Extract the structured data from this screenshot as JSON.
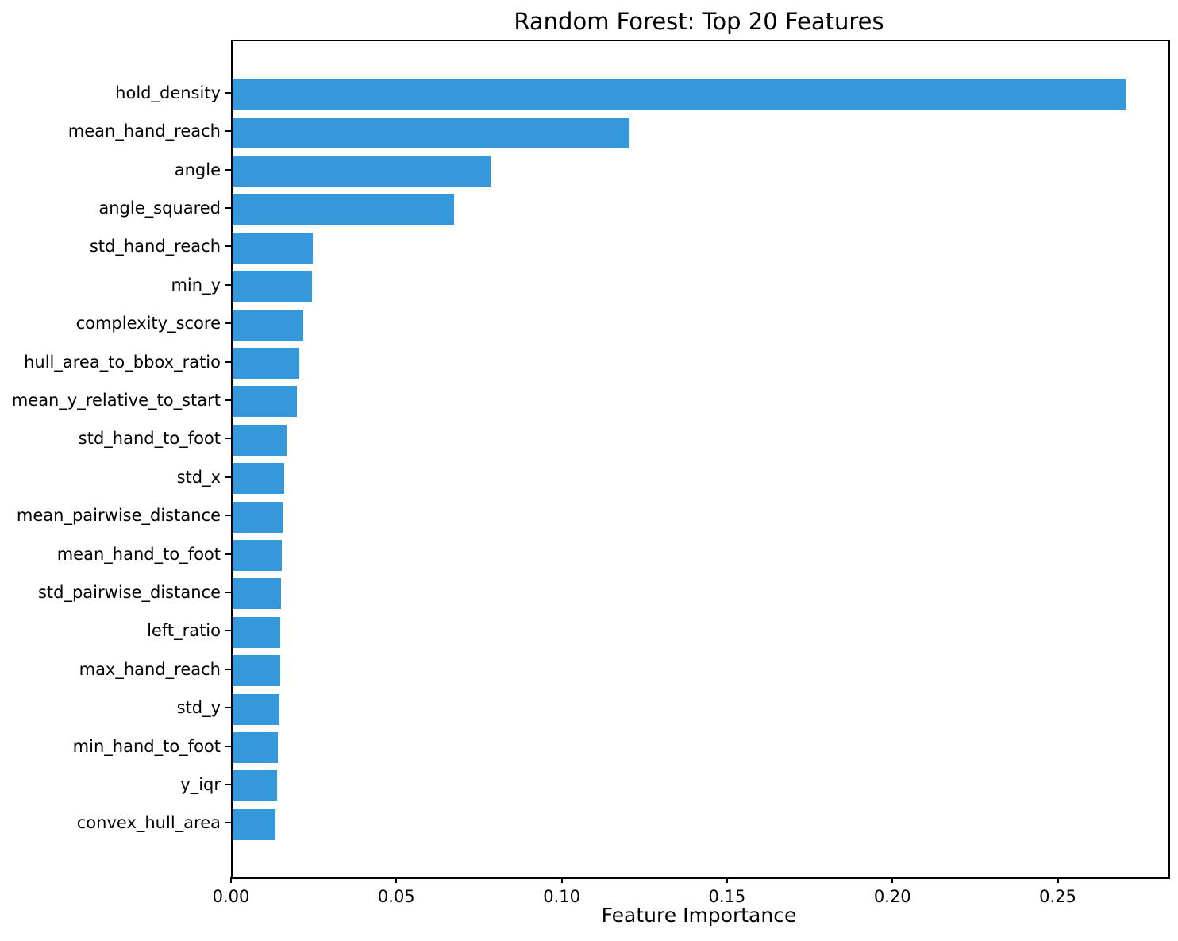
{
  "chart_data": {
    "type": "bar",
    "orientation": "horizontal",
    "title": "Random Forest: Top 20 Features",
    "xlabel": "Feature Importance",
    "ylabel": "",
    "bar_color": "#3498db",
    "grid": false,
    "legend": null,
    "xlim": [
      0,
      0.283
    ],
    "x_tick_values": [
      0.0,
      0.05,
      0.1,
      0.15,
      0.2,
      0.25
    ],
    "x_tick_labels": [
      "0.00",
      "0.05",
      "0.10",
      "0.15",
      "0.20",
      "0.25"
    ],
    "categories": [
      "hold_density",
      "mean_hand_reach",
      "angle",
      "angle_squared",
      "std_hand_reach",
      "min_y",
      "complexity_score",
      "hull_area_to_bbox_ratio",
      "mean_y_relative_to_start",
      "std_hand_to_foot",
      "std_x",
      "mean_pairwise_distance",
      "mean_hand_to_foot",
      "std_pairwise_distance",
      "left_ratio",
      "max_hand_reach",
      "std_y",
      "min_hand_to_foot",
      "y_iqr",
      "convex_hull_area"
    ],
    "values": [
      0.27,
      0.12,
      0.078,
      0.067,
      0.0242,
      0.024,
      0.0214,
      0.0202,
      0.0195,
      0.0163,
      0.0155,
      0.0152,
      0.0148,
      0.0146,
      0.0144,
      0.0143,
      0.0142,
      0.0138,
      0.0135,
      0.013
    ]
  }
}
